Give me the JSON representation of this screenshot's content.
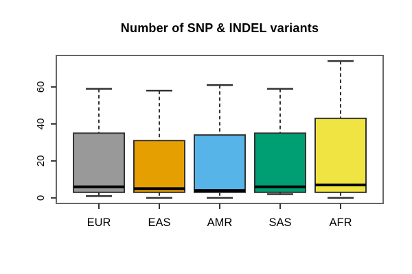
{
  "title": "Number of SNP & INDEL variants",
  "chart_data": {
    "type": "boxplot",
    "title": "Number of SNP & INDEL variants",
    "categories": [
      "EUR",
      "EAS",
      "AMR",
      "SAS",
      "AFR"
    ],
    "series": [
      {
        "name": "EUR",
        "min": 1,
        "q1": 3,
        "median": 6,
        "q3": 35,
        "max": 59,
        "color": "#999999"
      },
      {
        "name": "EAS",
        "min": 0,
        "q1": 3,
        "median": 5,
        "q3": 31,
        "max": 58,
        "color": "#E69F00"
      },
      {
        "name": "AMR",
        "min": 0,
        "q1": 3,
        "median": 4,
        "q3": 34,
        "max": 61,
        "color": "#56B4E9"
      },
      {
        "name": "SAS",
        "min": 2,
        "q1": 3,
        "median": 6,
        "q3": 35,
        "max": 59,
        "color": "#009E73"
      },
      {
        "name": "AFR",
        "min": 0,
        "q1": 3,
        "median": 7,
        "q3": 43,
        "max": 74,
        "color": "#F0E442"
      }
    ],
    "yticks": [
      0,
      20,
      40,
      60
    ],
    "ytick_labels": [
      "0",
      "20",
      "40",
      "60"
    ],
    "ylim": [
      -3,
      77
    ],
    "xlabel": "",
    "ylabel": "",
    "grid": false,
    "legend": "none",
    "frame_color": "#666666",
    "line_color": "#333333",
    "median_color": "#000000",
    "background": "#ffffff"
  }
}
